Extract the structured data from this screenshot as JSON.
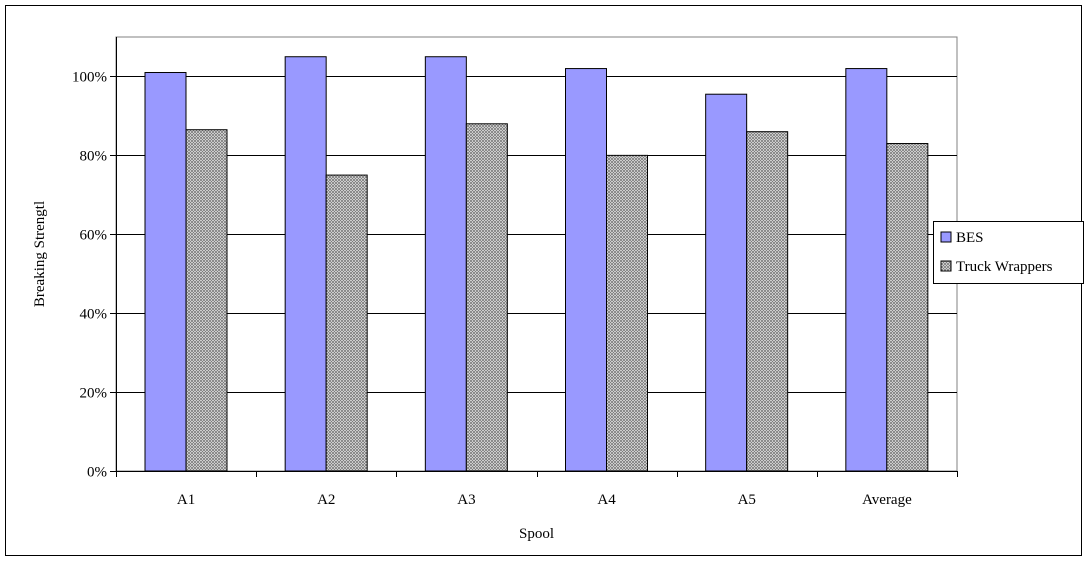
{
  "chart_data": {
    "type": "bar",
    "title": "",
    "xlabel": "Spool",
    "ylabel": "Breaking Strengtl",
    "categories": [
      "A1",
      "A2",
      "A3",
      "A4",
      "A5",
      "Average"
    ],
    "series": [
      {
        "name": "BES",
        "color": "#9999ff",
        "pattern": "solid",
        "values": [
          101,
          105,
          105,
          102,
          95.5,
          102
        ]
      },
      {
        "name": "Truck Wrappers",
        "color": "#c0c0c0",
        "pattern": "crosshatch",
        "values": [
          86.5,
          75,
          88,
          80,
          86,
          83
        ]
      }
    ],
    "ylim": [
      0,
      110
    ],
    "yticks": [
      0,
      20,
      40,
      60,
      80,
      100
    ],
    "ytick_labels": [
      "0%",
      "20%",
      "40%",
      "60%",
      "80%",
      "100%"
    ],
    "grid": true,
    "legend_position": "right"
  }
}
